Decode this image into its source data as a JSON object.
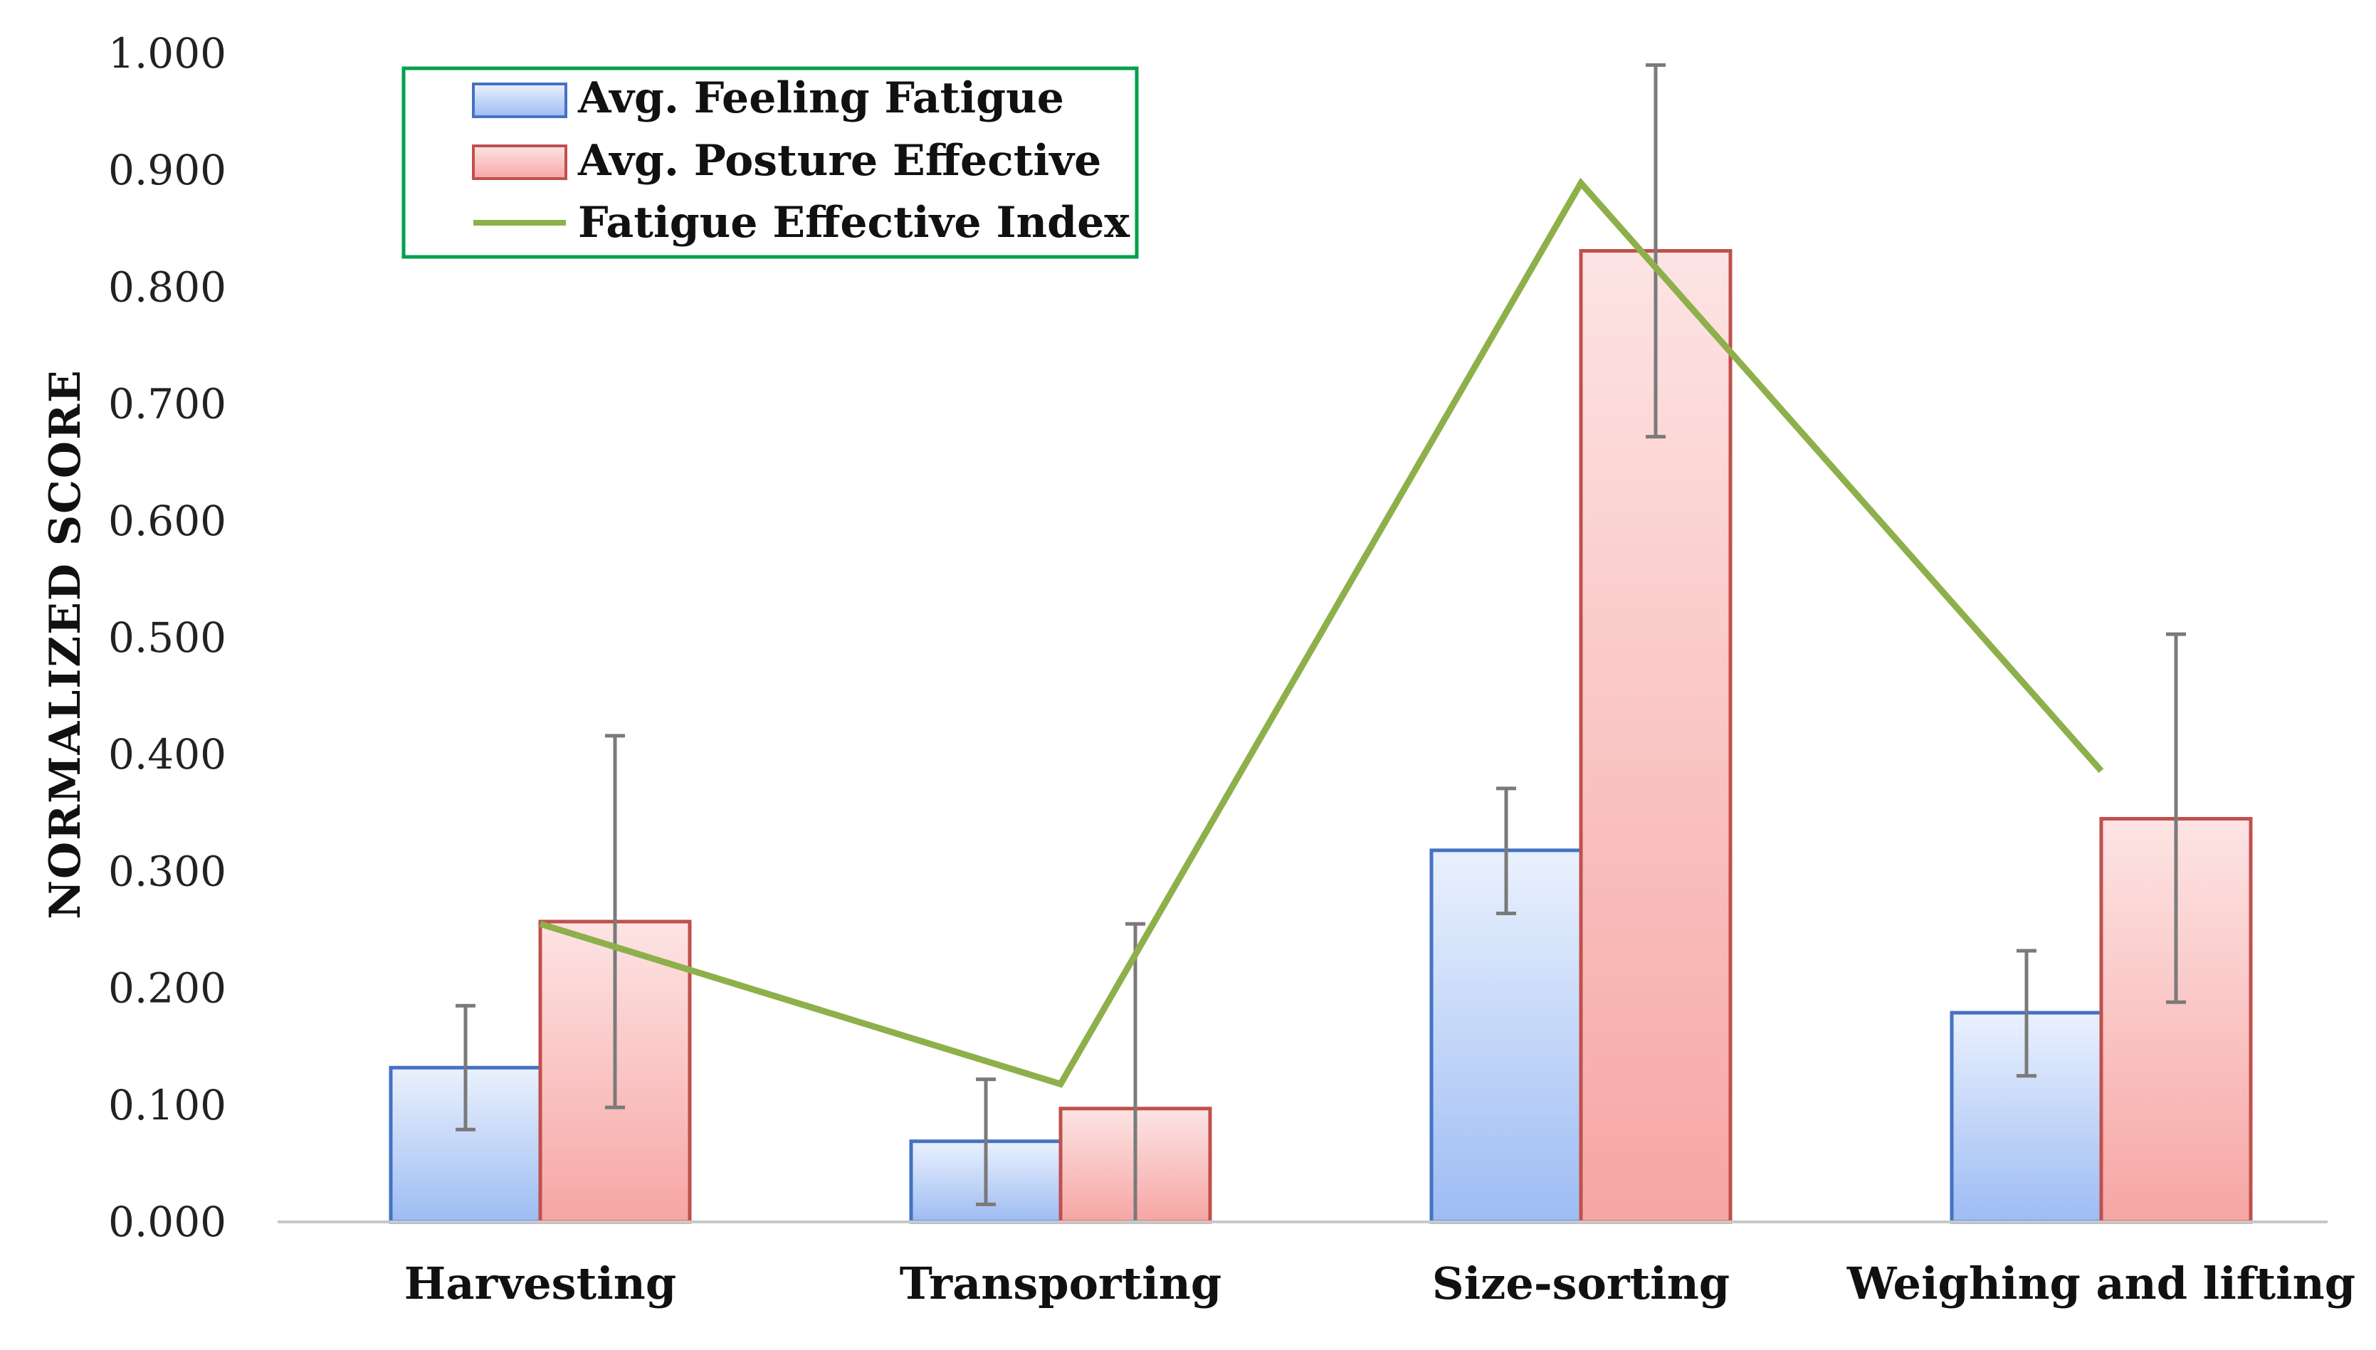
{
  "chart_data": {
    "type": "bar",
    "title": "",
    "xlabel": "",
    "ylabel": "NORMALIZED SCORE",
    "ylim": [
      0,
      1
    ],
    "yticks": [
      "0.000",
      "0.100",
      "0.200",
      "0.300",
      "0.400",
      "0.500",
      "0.600",
      "0.700",
      "0.800",
      "0.900",
      "1.000"
    ],
    "categories": [
      "Harvesting",
      "Transporting",
      "Size-sorting",
      "Weighing and lifting"
    ],
    "series": [
      {
        "name": "Avg. Feeling Fatigue",
        "kind": "bar",
        "color": "#4472c4",
        "values": [
          0.132,
          0.069,
          0.318,
          0.179
        ],
        "error_low": [
          0.079,
          0.015,
          0.264,
          0.125
        ],
        "error_high": [
          0.185,
          0.122,
          0.371,
          0.232
        ]
      },
      {
        "name": "Avg. Posture Effective",
        "kind": "bar",
        "color": "#c0504d",
        "values": [
          0.257,
          0.097,
          0.831,
          0.345
        ],
        "error_low": [
          0.098,
          0.0,
          0.672,
          0.188
        ],
        "error_high": [
          0.416,
          0.255,
          0.99,
          0.503
        ]
      },
      {
        "name": "Fatigue Effective Index",
        "kind": "line",
        "color": "#8db04a",
        "values": [
          0.255,
          0.118,
          0.889,
          0.386
        ]
      }
    ],
    "legend": {
      "position": "top-left",
      "border_color": "#00a14b"
    },
    "grid": false
  }
}
